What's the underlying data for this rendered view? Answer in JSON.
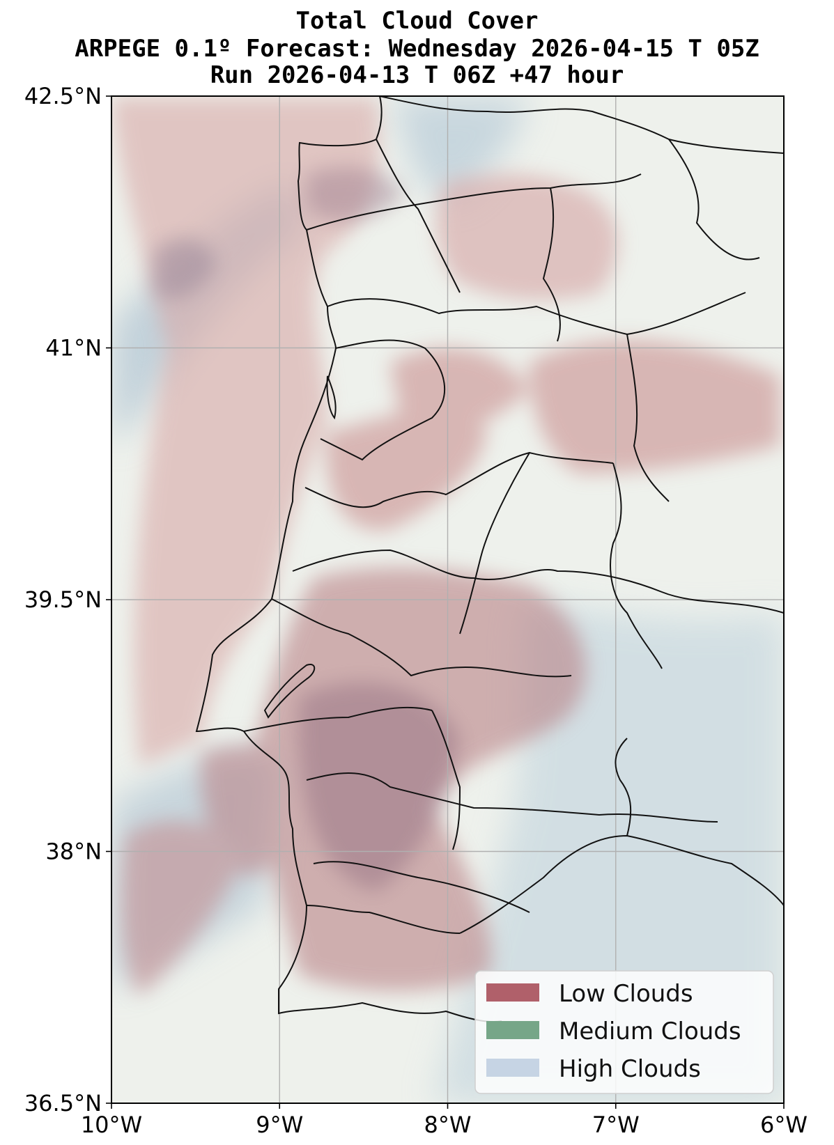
{
  "titles": {
    "line1": "Total Cloud Cover",
    "line2": "ARPEGE 0.1º Forecast: Wednesday 2026-04-15 T 05Z",
    "line3": "Run 2026-04-13 T 06Z +47 hour"
  },
  "map": {
    "lon_range": [
      -10,
      -6
    ],
    "lat_range": [
      36.5,
      42.5
    ],
    "x_ticks": [
      {
        "value": -10,
        "label": "10°W"
      },
      {
        "value": -9,
        "label": "9°W"
      },
      {
        "value": -8,
        "label": "8°W"
      },
      {
        "value": -7,
        "label": "7°W"
      },
      {
        "value": -6,
        "label": "6°W"
      }
    ],
    "y_ticks": [
      {
        "value": 42.5,
        "label": "42.5°N"
      },
      {
        "value": 41,
        "label": "41°N"
      },
      {
        "value": 39.5,
        "label": "39.5°N"
      },
      {
        "value": 38,
        "label": "38°N"
      },
      {
        "value": 36.5,
        "label": "36.5°N"
      }
    ],
    "grid": true
  },
  "legend": {
    "placement": "bottom-right",
    "items": [
      {
        "label": "Low Clouds",
        "color": "#b0606a"
      },
      {
        "label": "Medium Clouds",
        "color": "#76a688"
      },
      {
        "label": "High Clouds",
        "color": "#c6d4e4"
      }
    ]
  },
  "colors": {
    "background": "#eef1ec",
    "low_cloud": "#c98a8a",
    "high_cloud": "#9fb8cc",
    "border": "#000000",
    "grid": "#b0b0b0"
  }
}
